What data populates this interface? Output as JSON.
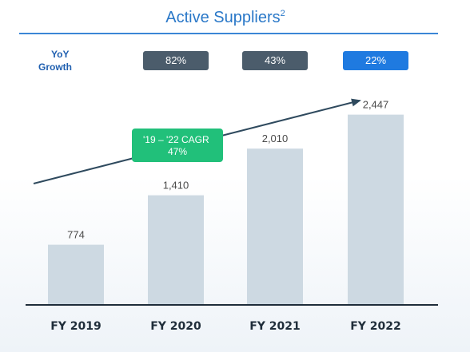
{
  "title": "Active Suppliers",
  "title_superscript": "2",
  "yoy_label_line1": "YoY",
  "yoy_label_line2": "Growth",
  "yoy_badges": [
    "82%",
    "43%",
    "22%"
  ],
  "cagr_line1": "'19 – '22 CAGR",
  "cagr_line2": "47%",
  "colors": {
    "title": "#2a78c8",
    "title_rule": "#3b86d6",
    "yoy_label": "#1f5fb0",
    "badge_dark": "#4b5c6b",
    "badge_highlight": "#1f7ae0",
    "badge_text": "#ffffff",
    "bar": "#cdd9e2",
    "cagr_box": "#21c07a",
    "arrow": "#2f4a5e",
    "axis": "#1f2d3a",
    "value_label": "#4a4a4a",
    "tick_label": "#1f2d3a"
  },
  "chart_data": {
    "type": "bar",
    "categories": [
      "FY 2019",
      "FY 2020",
      "FY 2021",
      "FY 2022"
    ],
    "values": [
      774,
      1410,
      2010,
      2447
    ],
    "value_labels": [
      "774",
      "1,410",
      "2,010",
      "2,447"
    ],
    "title": "Active Suppliers",
    "xlabel": "",
    "ylabel": "",
    "ylim": [
      0,
      3100
    ],
    "grid": false,
    "highlighted_index": 3
  }
}
